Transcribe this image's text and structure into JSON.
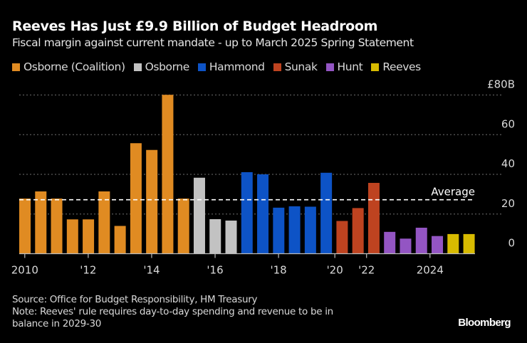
{
  "header": {
    "title": "Reeves Has Just £9.9 Billion of Budget Headroom",
    "subtitle": "Fiscal margin against current mandate - up to March 2025 Spring Statement"
  },
  "legend": [
    {
      "label": "Osborne (Coalition)",
      "color": "#E08B22"
    },
    {
      "label": "Osborne",
      "color": "#C2C2C2"
    },
    {
      "label": "Hammond",
      "color": "#0D53C6"
    },
    {
      "label": "Sunak",
      "color": "#BE4320"
    },
    {
      "label": "Hunt",
      "color": "#9355C3"
    },
    {
      "label": "Reeves",
      "color": "#D8BB00"
    }
  ],
  "footer": {
    "source": "Source: Office for Budget Responsibility, HM Treasury",
    "note_line1": "Note: Reeves' rule requires day-to-day spending and revenue to be in",
    "note_line2": "balance in 2029-30",
    "brand": "Bloomberg"
  },
  "chart_data": {
    "type": "bar",
    "title": "Reeves Has Just £9.9 Billion of Budget Headroom",
    "subtitle": "Fiscal margin against current mandate - up to March 2025 Spring Statement",
    "xlabel": "",
    "ylabel": "£ billion",
    "ylim": [
      0,
      80
    ],
    "yticks": [
      0,
      20,
      40,
      60,
      80
    ],
    "ytick_labels": [
      "0",
      "20",
      "40",
      "60",
      "£80B"
    ],
    "x_tick_labels": [
      {
        "label": "2010",
        "position": 0.35
      },
      {
        "label": "'12",
        "position": 4.35
      },
      {
        "label": "'14",
        "position": 8.35
      },
      {
        "label": "'16",
        "position": 12.35
      },
      {
        "label": "'18",
        "position": 16.35
      },
      {
        "label": "'20",
        "position": 19.9
      },
      {
        "label": "'22",
        "position": 21.9
      },
      {
        "label": "2024",
        "position": 25.9
      }
    ],
    "grid": "horizontal dotted",
    "legend_position": "top-left",
    "average": {
      "label": "Average",
      "value": 27.2
    },
    "series": [
      {
        "name": "Osborne (Coalition)",
        "color": "#E08B22",
        "values": [
          27.8,
          31.4,
          27.8,
          17.3,
          17.3,
          31.4,
          14.0,
          55.7,
          52.3,
          80.1,
          27.8
        ]
      },
      {
        "name": "Osborne",
        "color": "#C2C2C2",
        "values": [
          38.3,
          17.4,
          16.7
        ]
      },
      {
        "name": "Hammond",
        "color": "#0D53C6",
        "values": [
          41.1,
          40.0,
          23.2,
          23.9,
          23.7,
          40.8
        ]
      },
      {
        "name": "Sunak",
        "color": "#BE4320",
        "values": [
          16.5,
          23.0,
          35.7
        ]
      },
      {
        "name": "Hunt",
        "color": "#9355C3",
        "values": [
          11.0,
          7.6,
          13.1,
          8.9
        ]
      },
      {
        "name": "Reeves",
        "color": "#D8BB00",
        "values": [
          9.9,
          9.9
        ]
      }
    ]
  }
}
